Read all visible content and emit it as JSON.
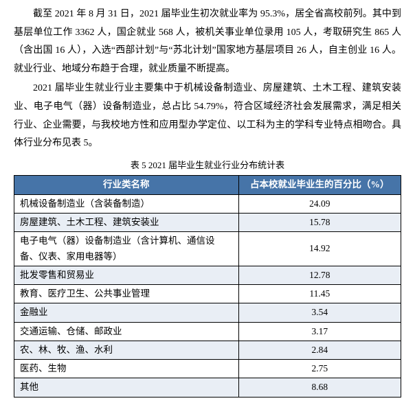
{
  "paragraphs": {
    "p1": "截至 2021 年 8 月 31 日，2021 届毕业生初次就业率为 95.3%，居全省高校前列。其中到基层单位工作 3362 人，国企就业 568 人，被机关事业单位录用 105 人，考取研究生 865 人（含出国 16 人），入选“西部计划”与“苏北计划”国家地方基层项目 26 人，自主创业 16 人。就业行业、地域分布趋于合理，就业质量不断提高。",
    "p2": "2021 届毕业生就业行业主要集中于机械设备制造业、房屋建筑、土木工程、建筑安装业、电子电气（器）设备制造业，总占比 54.79%，符合区域经济社会发展需求，满足相关行业、企业需要，与我校地方性和应用型办学定位、以工科为主的学科专业特点相吻合。具体行业分布见表 5。"
  },
  "table": {
    "caption": "表 5  2021 届毕业生就业行业分布统计表",
    "header_bg": "#4674a8",
    "header_fg": "#ffffff",
    "alt_bg": "#e9eef5",
    "border_color": "#000000",
    "columns": [
      "行业类名称",
      "占本校就业毕业生的百分比（%）"
    ],
    "rows": [
      {
        "name": "机械设备制造业（含装备制造）",
        "pct": "24.09"
      },
      {
        "name": "房屋建筑、土木工程、建筑安装业",
        "pct": "15.78"
      },
      {
        "name": "电子电气（器）设备制造业（含计算机、通信设备、仪表、家用电器等）",
        "pct": "14.92"
      },
      {
        "name": "批发零售和贸易业",
        "pct": "12.78"
      },
      {
        "name": "教育、医疗卫生、公共事业管理",
        "pct": "11.45"
      },
      {
        "name": "金融业",
        "pct": "3.54"
      },
      {
        "name": "交通运输、仓储、邮政业",
        "pct": "3.17"
      },
      {
        "name": "农、林、牧、渔、水利",
        "pct": "2.84"
      },
      {
        "name": "医药、生物",
        "pct": "2.75"
      },
      {
        "name": "其他",
        "pct": "8.68"
      }
    ]
  }
}
